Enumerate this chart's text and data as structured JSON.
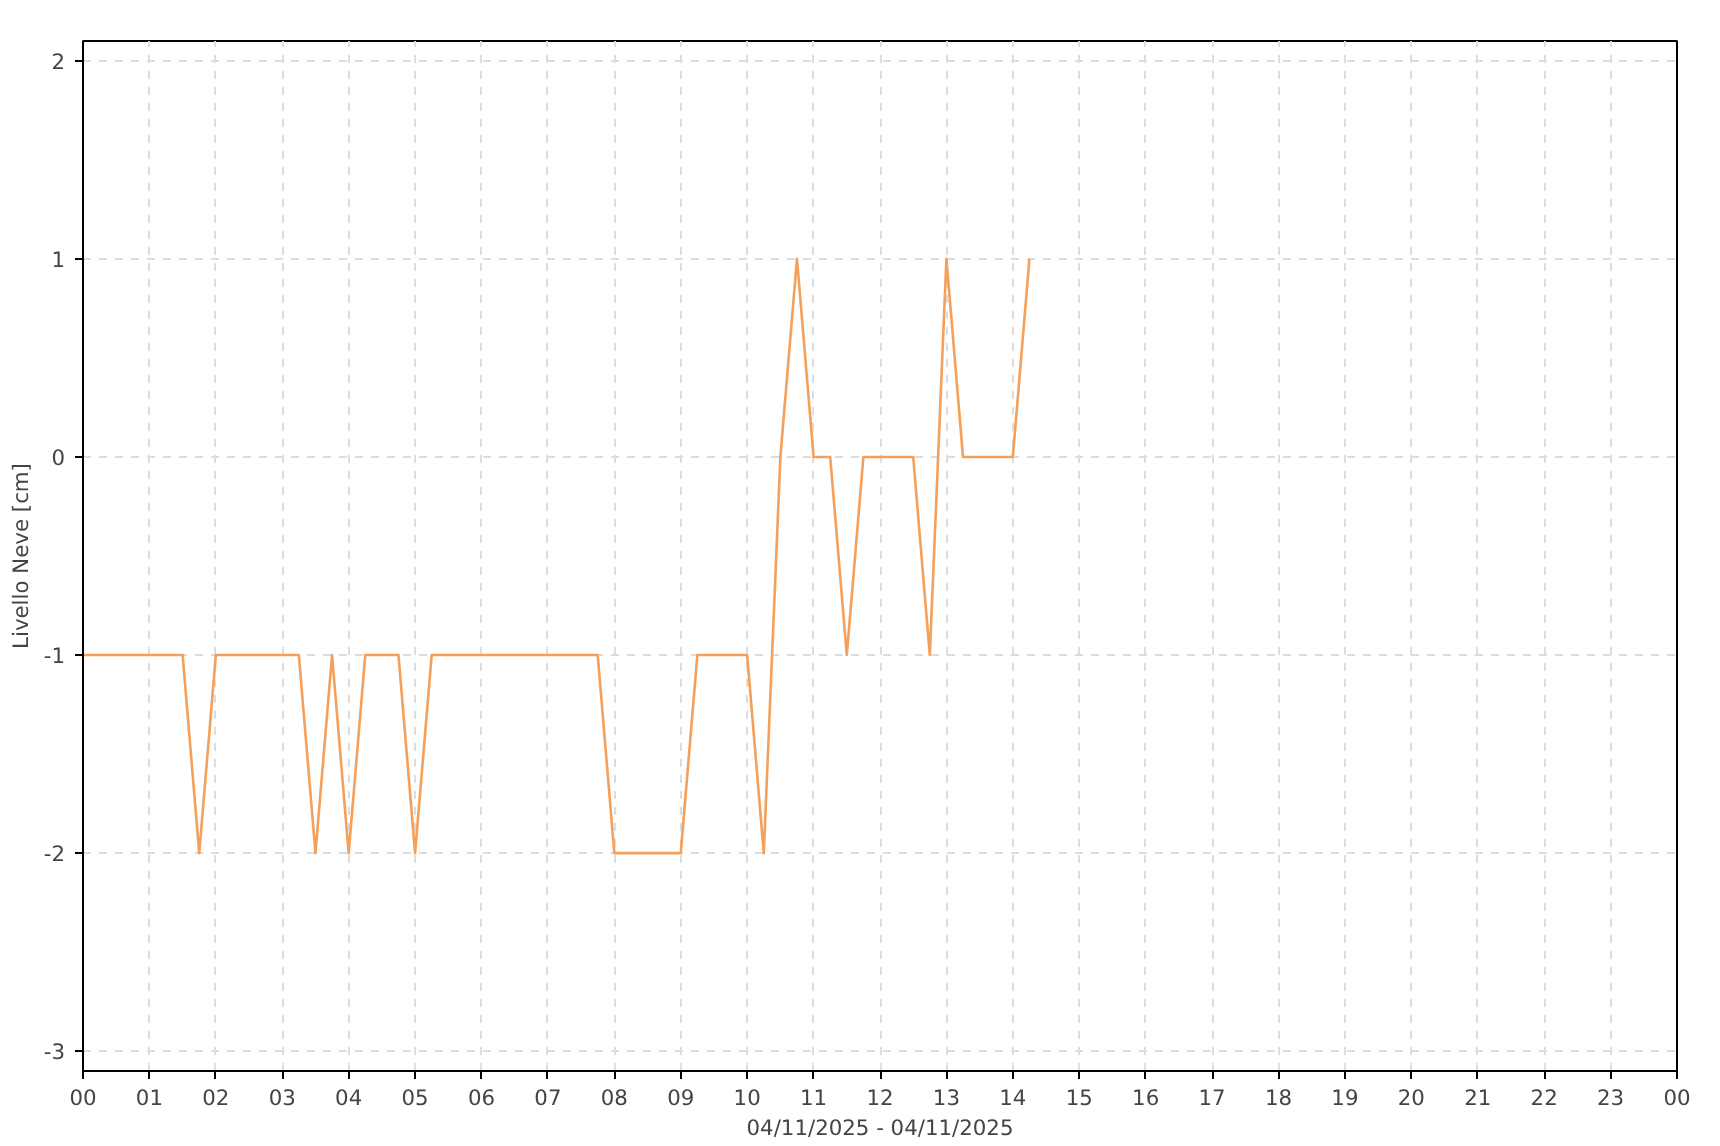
{
  "chart_data": {
    "type": "line",
    "xlabel": "04/11/2025 - 04/11/2025",
    "ylabel": "Livello Neve [cm]",
    "x": [
      0,
      1.5,
      1.75,
      2.0,
      3.25,
      3.5,
      3.75,
      4.0,
      4.25,
      4.75,
      5.0,
      5.25,
      7.75,
      8.0,
      9.0,
      9.25,
      10.0,
      10.25,
      10.5,
      10.75,
      11.0,
      11.25,
      11.5,
      11.75,
      12.5,
      12.75,
      13.0,
      13.25,
      14.0,
      14.25
    ],
    "series": [
      {
        "color": "#f5a05a",
        "values": [
          -1,
          -1,
          -2,
          -1,
          -1,
          -2,
          -1,
          -2,
          -1,
          -1,
          -2,
          -1,
          -1,
          -2,
          -2,
          -1,
          -1,
          -2,
          0,
          1,
          0,
          0,
          -1,
          0,
          0,
          -1,
          1,
          0,
          0,
          1
        ]
      }
    ],
    "xlim": [
      0,
      24
    ],
    "ylim": [
      -3.1,
      2.1
    ],
    "xticks": [
      {
        "value": 0,
        "label": "00"
      },
      {
        "value": 1,
        "label": "01"
      },
      {
        "value": 2,
        "label": "02"
      },
      {
        "value": 3,
        "label": "03"
      },
      {
        "value": 4,
        "label": "04"
      },
      {
        "value": 5,
        "label": "05"
      },
      {
        "value": 6,
        "label": "06"
      },
      {
        "value": 7,
        "label": "07"
      },
      {
        "value": 8,
        "label": "08"
      },
      {
        "value": 9,
        "label": "09"
      },
      {
        "value": 10,
        "label": "10"
      },
      {
        "value": 11,
        "label": "11"
      },
      {
        "value": 12,
        "label": "12"
      },
      {
        "value": 13,
        "label": "13"
      },
      {
        "value": 14,
        "label": "14"
      },
      {
        "value": 15,
        "label": "15"
      },
      {
        "value": 16,
        "label": "16"
      },
      {
        "value": 17,
        "label": "17"
      },
      {
        "value": 18,
        "label": "18"
      },
      {
        "value": 19,
        "label": "19"
      },
      {
        "value": 20,
        "label": "20"
      },
      {
        "value": 21,
        "label": "21"
      },
      {
        "value": 22,
        "label": "22"
      },
      {
        "value": 23,
        "label": "23"
      },
      {
        "value": 24,
        "label": "00"
      }
    ],
    "yticks": [
      -3,
      -2,
      -1,
      0,
      1,
      2
    ],
    "grid": true,
    "line_style": "solid"
  }
}
